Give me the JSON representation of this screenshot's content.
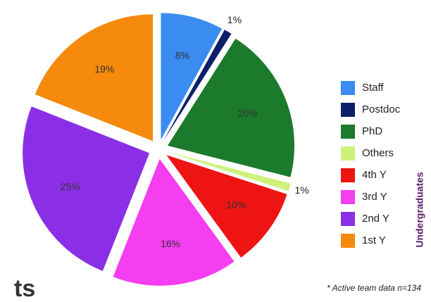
{
  "chart_data": {
    "type": "pie",
    "categories": [
      "Staff",
      "Postdoc",
      "PhD",
      "Others",
      "4th Y",
      "3rd Y",
      "2nd Y",
      "1st Y"
    ],
    "values": [
      8,
      1,
      20,
      1,
      10,
      16,
      25,
      19
    ],
    "value_labels": [
      "8%",
      "1%",
      "20%",
      "1%",
      "10%",
      "16%",
      "25%",
      "19%"
    ],
    "colors": [
      "#3b8cf0",
      "#0c1f6b",
      "#1b7a2c",
      "#cdf27c",
      "#ee1414",
      "#f43ef0",
      "#8a2fe6",
      "#f58a0c"
    ],
    "legend_group_label": "Undergraduates",
    "annotation": "* Active team data n=134",
    "fragment_text": "ts"
  }
}
